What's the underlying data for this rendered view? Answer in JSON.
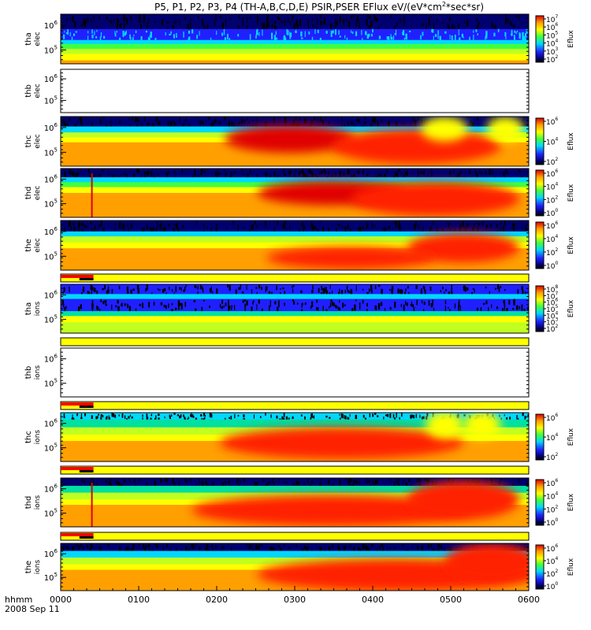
{
  "chart_data": {
    "type": "heatmap",
    "title": "P5, P1, P2, P3, P4 (TH-A,B,C,D,E) PSIR,PSER EFlux eV/(eV*cm",
    "title_sup": "2",
    "title_end": "*sec*sr)",
    "x_tick_labels": [
      "0000",
      "0100",
      "0200",
      "0300",
      "0400",
      "0500",
      "0600"
    ],
    "x_range_hhmm": [
      "0000",
      "0600"
    ],
    "x_header": "hhmm",
    "date_label": "2008 Sep 11",
    "colorbar_label": "Eflux",
    "colors": {
      "black": "#000000",
      "navy": "#00006e",
      "blue": "#2020ff",
      "cyan": "#00d8ff",
      "teal": "#00e0a0",
      "green": "#40ff40",
      "lime": "#c0ff20",
      "yellow": "#ffff00",
      "orange": "#ffa000",
      "red": "#ff2000",
      "darkred": "#e00000",
      "flag_red": "#ff0000"
    },
    "panels": [
      {
        "id": "tha-elec",
        "ylabel": "tha",
        "ylabel2": "elec",
        "empty": false,
        "y_ticks": [
          {
            "base": "10",
            "exp": "6"
          },
          {
            "base": "10",
            "exp": "5"
          }
        ],
        "colorbar": {
          "kind": "tall",
          "ticks": [
            {
              "base": "10",
              "exp": "7"
            },
            {
              "base": "10",
              "exp": "6"
            },
            {
              "base": "10",
              "exp": "5"
            },
            {
              "base": "10",
              "exp": "4"
            },
            {
              "base": "10",
              "exp": "3"
            },
            {
              "base": "10",
              "exp": "2"
            }
          ]
        },
        "bands": [
          {
            "to": 0.3,
            "color": "navy",
            "speckle": "dark"
          },
          {
            "to": 0.52,
            "color": "blue",
            "speckle": "light"
          },
          {
            "to": 0.6,
            "color": "cyan"
          },
          {
            "to": 0.7,
            "color": "green"
          },
          {
            "to": 0.8,
            "color": "lime"
          },
          {
            "to": 0.93,
            "color": "yellow"
          },
          {
            "to": 1.0,
            "color": "orange"
          }
        ],
        "blobs": []
      },
      {
        "id": "thb-elec",
        "ylabel": "thb",
        "ylabel2": "elec",
        "empty": true,
        "y_ticks": [
          {
            "base": "10",
            "exp": "6"
          },
          {
            "base": "10",
            "exp": "5"
          }
        ],
        "colorbar": {
          "kind": "none",
          "ticks": []
        },
        "bands": [],
        "blobs": []
      },
      {
        "id": "thc-elec",
        "ylabel": "thc",
        "ylabel2": "elec",
        "empty": false,
        "y_ticks": [
          {
            "base": "10",
            "exp": "6"
          },
          {
            "base": "10",
            "exp": "5"
          }
        ],
        "colorbar": {
          "kind": "short",
          "ticks": [
            {
              "base": "10",
              "exp": "6"
            },
            {
              "base": "10",
              "exp": "4"
            },
            {
              "base": "10",
              "exp": "2"
            }
          ]
        },
        "bands": [
          {
            "to": 0.2,
            "color": "navy",
            "speckle": "dark"
          },
          {
            "to": 0.32,
            "color": "cyan"
          },
          {
            "to": 0.42,
            "color": "lime"
          },
          {
            "to": 0.52,
            "color": "yellow"
          },
          {
            "to": 1.0,
            "color": "orange"
          }
        ],
        "blobs": [
          {
            "cx": 0.49,
            "cy": 0.45,
            "rx": 0.14,
            "ry": 0.28,
            "color": "darkred"
          },
          {
            "cx": 0.76,
            "cy": 0.6,
            "rx": 0.18,
            "ry": 0.35,
            "color": "red"
          },
          {
            "cx": 0.82,
            "cy": 0.25,
            "rx": 0.05,
            "ry": 0.25,
            "color": "yellow"
          },
          {
            "cx": 0.95,
            "cy": 0.25,
            "rx": 0.04,
            "ry": 0.25,
            "color": "yellow"
          }
        ]
      },
      {
        "id": "thd-elec",
        "ylabel": "thd",
        "ylabel2": "elec",
        "empty": false,
        "y_ticks": [
          {
            "base": "10",
            "exp": "6"
          },
          {
            "base": "10",
            "exp": "5"
          }
        ],
        "colorbar": {
          "kind": "short",
          "ticks": [
            {
              "base": "10",
              "exp": "6"
            },
            {
              "base": "10",
              "exp": "4"
            },
            {
              "base": "10",
              "exp": "2"
            },
            {
              "base": "10",
              "exp": "0"
            }
          ]
        },
        "bands": [
          {
            "to": 0.18,
            "color": "navy",
            "speckle": "dark"
          },
          {
            "to": 0.28,
            "color": "cyan"
          },
          {
            "to": 0.38,
            "color": "green"
          },
          {
            "to": 0.5,
            "color": "yellow"
          },
          {
            "to": 1.0,
            "color": "orange"
          }
        ],
        "blobs": [
          {
            "cx": 0.58,
            "cy": 0.5,
            "rx": 0.16,
            "ry": 0.25,
            "color": "darkred"
          },
          {
            "cx": 0.8,
            "cy": 0.62,
            "rx": 0.18,
            "ry": 0.35,
            "color": "red"
          }
        ],
        "spike": 0.065
      },
      {
        "id": "the-elec",
        "ylabel": "the",
        "ylabel2": "elec",
        "empty": false,
        "y_ticks": [
          {
            "base": "10",
            "exp": "6"
          },
          {
            "base": "10",
            "exp": "5"
          }
        ],
        "colorbar": {
          "kind": "short",
          "ticks": [
            {
              "base": "10",
              "exp": "6"
            },
            {
              "base": "10",
              "exp": "4"
            },
            {
              "base": "10",
              "exp": "2"
            },
            {
              "base": "10",
              "exp": "0"
            }
          ]
        },
        "bands": [
          {
            "to": 0.22,
            "color": "navy",
            "speckle": "dark"
          },
          {
            "to": 0.32,
            "color": "cyan"
          },
          {
            "to": 0.44,
            "color": "lime"
          },
          {
            "to": 0.56,
            "color": "yellow"
          },
          {
            "to": 1.0,
            "color": "orange"
          }
        ],
        "blobs": [
          {
            "cx": 0.86,
            "cy": 0.55,
            "rx": 0.12,
            "ry": 0.3,
            "color": "red"
          },
          {
            "cx": 0.62,
            "cy": 0.75,
            "rx": 0.18,
            "ry": 0.22,
            "color": "red"
          }
        ]
      },
      {
        "id": "tha-ions",
        "ylabel": "tha",
        "ylabel2": "ions",
        "empty": false,
        "y_ticks": [
          {
            "base": "10",
            "exp": "6"
          },
          {
            "base": "10",
            "exp": "5"
          }
        ],
        "colorbar": {
          "kind": "tall",
          "ticks": [
            {
              "base": "10",
              "exp": "8"
            },
            {
              "base": "10",
              "exp": "7"
            },
            {
              "base": "10",
              "exp": "6"
            },
            {
              "base": "10",
              "exp": "5"
            },
            {
              "base": "10",
              "exp": "4"
            },
            {
              "base": "10",
              "exp": "3"
            },
            {
              "base": "10",
              "exp": "2"
            }
          ]
        },
        "bands": [
          {
            "to": 0.2,
            "color": "blue",
            "speckle": "dark"
          },
          {
            "to": 0.3,
            "color": "cyan"
          },
          {
            "to": 0.55,
            "color": "blue",
            "speckle": "dark"
          },
          {
            "to": 0.65,
            "color": "teal"
          },
          {
            "to": 0.78,
            "color": "yellow"
          },
          {
            "to": 1.0,
            "color": "lime"
          }
        ],
        "blobs": []
      },
      {
        "id": "thb-ions",
        "ylabel": "thb",
        "ylabel2": "ions",
        "empty": true,
        "y_ticks": [
          {
            "base": "10",
            "exp": "6"
          },
          {
            "base": "10",
            "exp": "5"
          }
        ],
        "colorbar": {
          "kind": "none",
          "ticks": []
        },
        "bands": [],
        "blobs": []
      },
      {
        "id": "thc-ions",
        "ylabel": "thc",
        "ylabel2": "ions",
        "empty": false,
        "y_ticks": [
          {
            "base": "10",
            "exp": "6"
          },
          {
            "base": "10",
            "exp": "5"
          }
        ],
        "colorbar": {
          "kind": "short",
          "ticks": [
            {
              "base": "10",
              "exp": "6"
            },
            {
              "base": "10",
              "exp": "4"
            },
            {
              "base": "10",
              "exp": "2"
            }
          ]
        },
        "bands": [
          {
            "to": 0.14,
            "color": "cyan",
            "speckle": "dark"
          },
          {
            "to": 0.3,
            "color": "teal"
          },
          {
            "to": 0.45,
            "color": "lime"
          },
          {
            "to": 0.58,
            "color": "yellow"
          },
          {
            "to": 1.0,
            "color": "orange"
          }
        ],
        "blobs": [
          {
            "cx": 0.6,
            "cy": 0.62,
            "rx": 0.26,
            "ry": 0.32,
            "color": "red"
          },
          {
            "cx": 0.82,
            "cy": 0.25,
            "rx": 0.04,
            "ry": 0.28,
            "color": "yellow"
          },
          {
            "cx": 0.9,
            "cy": 0.25,
            "rx": 0.04,
            "ry": 0.28,
            "color": "yellow"
          }
        ]
      },
      {
        "id": "thd-ions",
        "ylabel": "thd",
        "ylabel2": "ions",
        "empty": false,
        "y_ticks": [
          {
            "base": "10",
            "exp": "6"
          },
          {
            "base": "10",
            "exp": "5"
          }
        ],
        "colorbar": {
          "kind": "short",
          "ticks": [
            {
              "base": "10",
              "exp": "6"
            },
            {
              "base": "10",
              "exp": "4"
            },
            {
              "base": "10",
              "exp": "2"
            },
            {
              "base": "10",
              "exp": "0"
            }
          ]
        },
        "bands": [
          {
            "to": 0.16,
            "color": "navy",
            "speckle": "dark"
          },
          {
            "to": 0.3,
            "color": "teal"
          },
          {
            "to": 0.44,
            "color": "lime"
          },
          {
            "to": 0.55,
            "color": "yellow"
          },
          {
            "to": 1.0,
            "color": "orange"
          }
        ],
        "blobs": [
          {
            "cx": 0.58,
            "cy": 0.66,
            "rx": 0.3,
            "ry": 0.32,
            "color": "red"
          },
          {
            "cx": 0.86,
            "cy": 0.45,
            "rx": 0.12,
            "ry": 0.4,
            "color": "red"
          }
        ],
        "spike": 0.065
      },
      {
        "id": "the-ions",
        "ylabel": "the",
        "ylabel2": "ions",
        "empty": false,
        "y_ticks": [
          {
            "base": "10",
            "exp": "6"
          },
          {
            "base": "10",
            "exp": "5"
          }
        ],
        "colorbar": {
          "kind": "short",
          "ticks": [
            {
              "base": "10",
              "exp": "6"
            },
            {
              "base": "10",
              "exp": "4"
            },
            {
              "base": "10",
              "exp": "2"
            },
            {
              "base": "10",
              "exp": "0"
            }
          ]
        },
        "bands": [
          {
            "to": 0.16,
            "color": "navy",
            "speckle": "dark"
          },
          {
            "to": 0.3,
            "color": "cyan"
          },
          {
            "to": 0.44,
            "color": "lime"
          },
          {
            "to": 0.56,
            "color": "yellow"
          },
          {
            "to": 1.0,
            "color": "orange"
          }
        ],
        "blobs": [
          {
            "cx": 0.72,
            "cy": 0.66,
            "rx": 0.3,
            "ry": 0.34,
            "color": "red"
          },
          {
            "cx": 0.92,
            "cy": 0.4,
            "rx": 0.1,
            "ry": 0.4,
            "color": "red"
          }
        ]
      }
    ],
    "flag_bars": [
      {
        "after_panel": "the-elec",
        "red_to": 0.07
      },
      {
        "after_panel": "tha-ions",
        "red_to": 0.0
      },
      {
        "after_panel": "thb-ions",
        "red_to": 0.07
      },
      {
        "after_panel": "thc-ions",
        "red_to": 0.07
      },
      {
        "after_panel": "thd-ions",
        "red_to": 0.07
      }
    ]
  }
}
